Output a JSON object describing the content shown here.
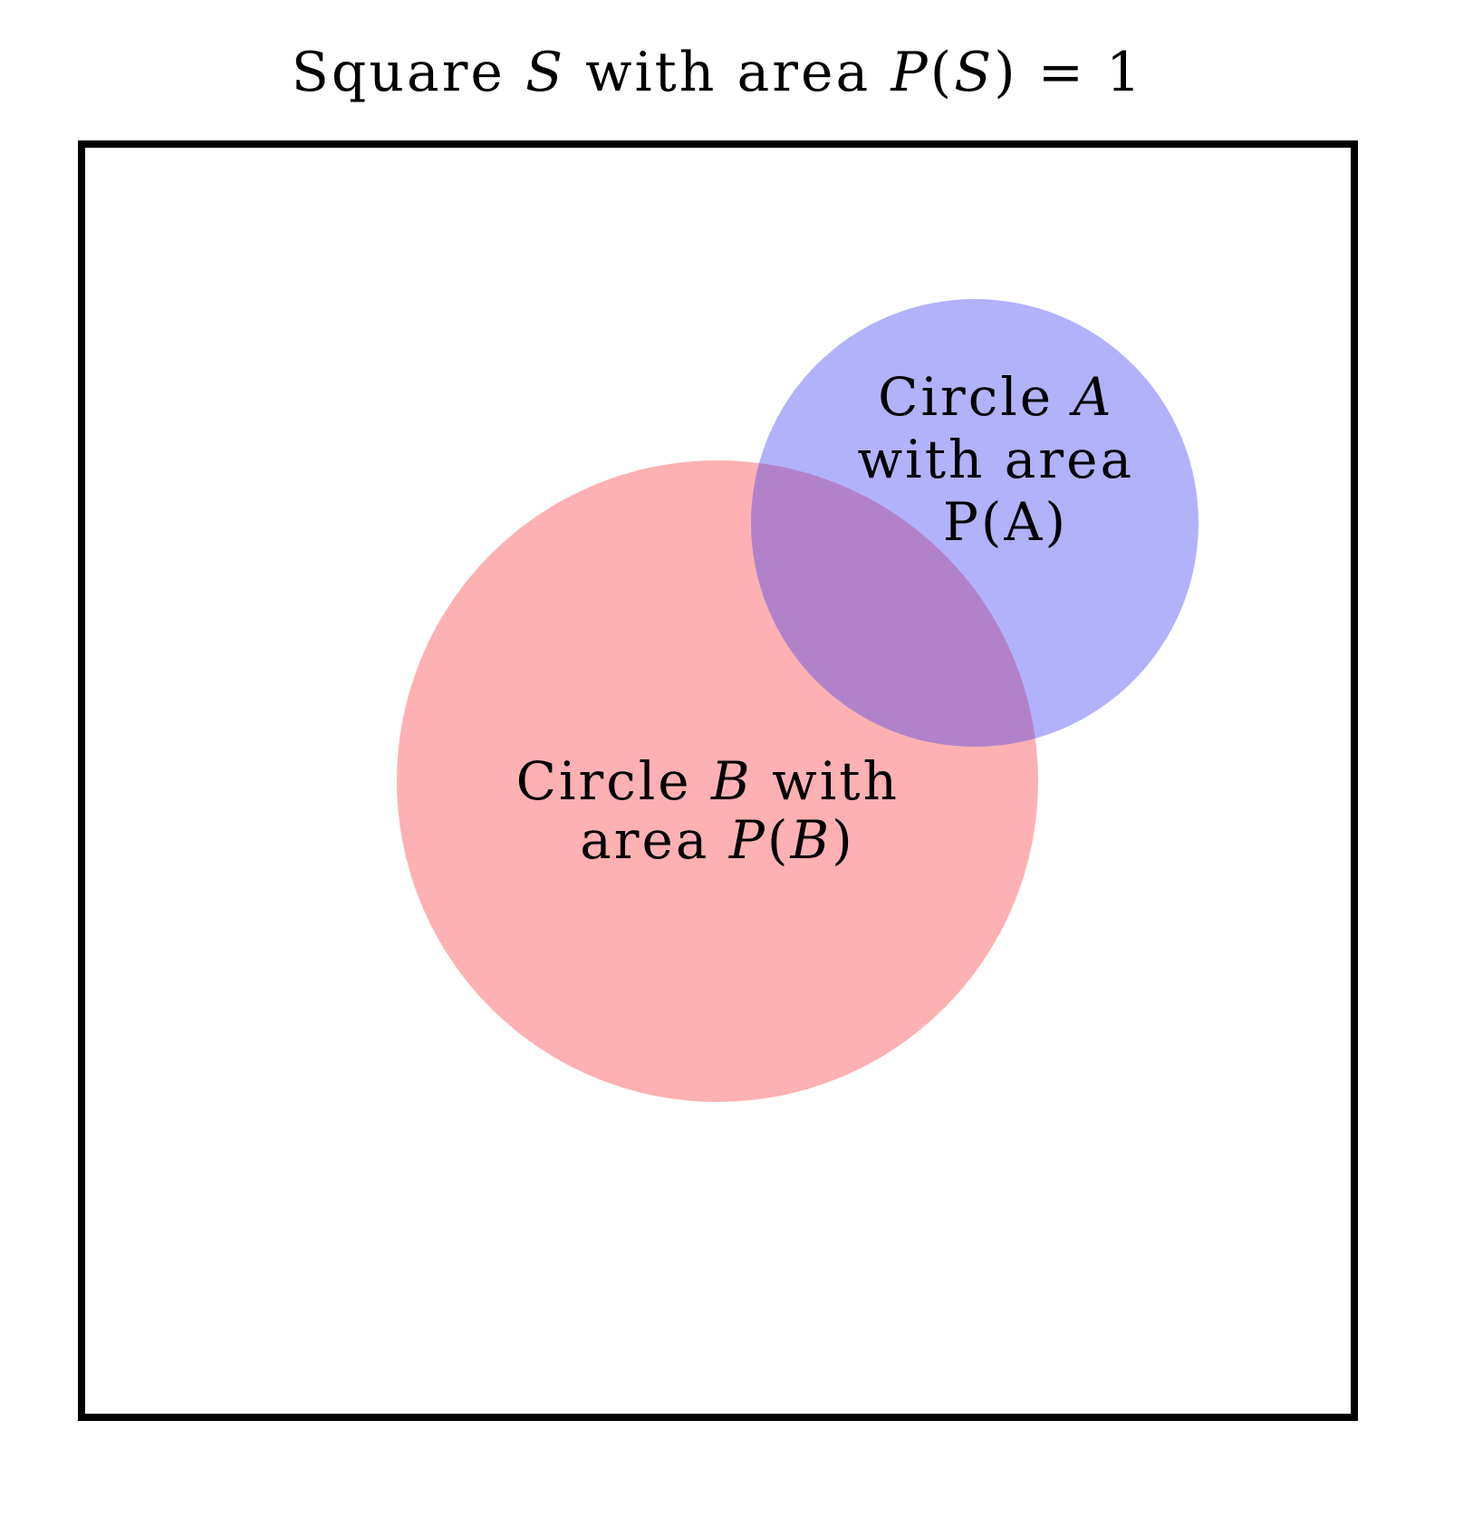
{
  "title": {
    "prefix": "Square ",
    "set_symbol": "S",
    "middle": " with area ",
    "prob_symbol": "P",
    "open_paren": "(",
    "set_symbol_2": "S",
    "suffix": ") = 1"
  },
  "circle_a": {
    "fill_color": "#b2b2fb",
    "line1_prefix": "Circle ",
    "line1_symbol": "A",
    "line2": "with area",
    "line3": "P(A)"
  },
  "circle_b": {
    "fill_color": "#feb1b2",
    "line1_prefix": "Circle ",
    "line1_symbol": "B",
    "line1_suffix": " with",
    "line2_prefix": "area ",
    "line2_prob": "P",
    "line2_open": "(",
    "line2_symbol": "B",
    "line2_close": ")"
  },
  "overlap": {
    "fill_color": "#b182c9"
  },
  "square": {
    "stroke_color": "#000000"
  }
}
